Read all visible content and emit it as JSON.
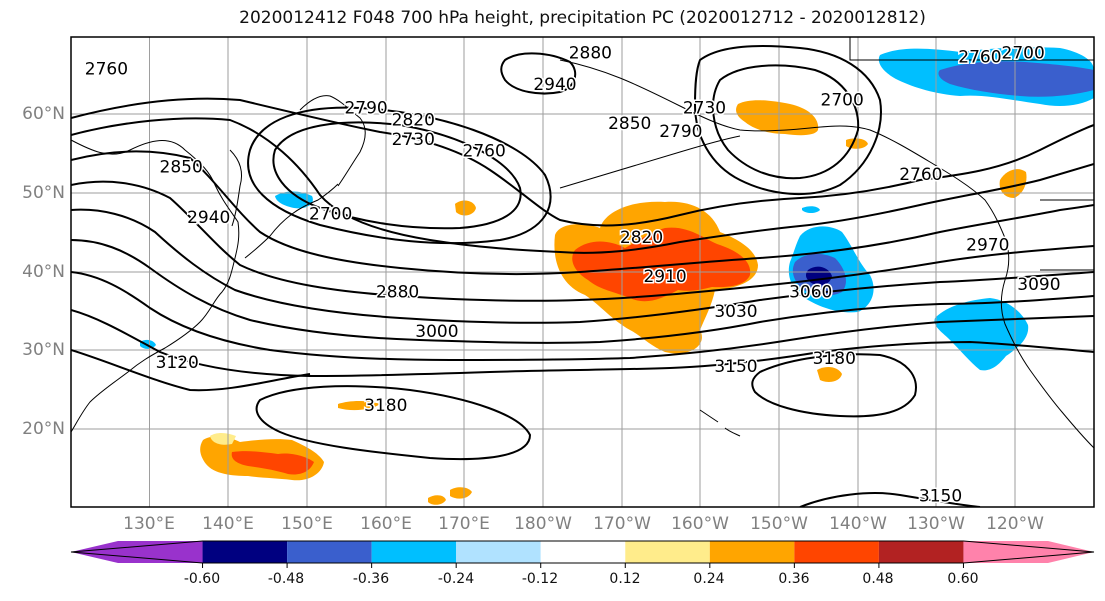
{
  "title": "2020012412 F048 700 hPa height, precipitation PC (2020012712 - 2020012812)",
  "map": {
    "lon_range": [
      120,
      250
    ],
    "lat_range": [
      10,
      70
    ],
    "lat_ticks": [
      {
        "lat": 60,
        "label": "60°N"
      },
      {
        "lat": 50,
        "label": "50°N"
      },
      {
        "lat": 40,
        "label": "40°N"
      },
      {
        "lat": 30,
        "label": "30°N"
      },
      {
        "lat": 20,
        "label": "20°N"
      }
    ],
    "lon_ticks": [
      {
        "lon": 130,
        "label": "130°E"
      },
      {
        "lon": 140,
        "label": "140°E"
      },
      {
        "lon": 150,
        "label": "150°E"
      },
      {
        "lon": 160,
        "label": "160°E"
      },
      {
        "lon": 170,
        "label": "170°E"
      },
      {
        "lon": 180,
        "label": "180°W"
      },
      {
        "lon": 190,
        "label": "170°W"
      },
      {
        "lon": 200,
        "label": "160°W"
      },
      {
        "lon": 210,
        "label": "150°W"
      },
      {
        "lon": 220,
        "label": "140°W"
      },
      {
        "lon": 230,
        "label": "130°W"
      },
      {
        "lon": 240,
        "label": "120°W"
      }
    ],
    "grid": true,
    "contour_labels": [
      {
        "text": "2760",
        "lon": 124.5,
        "lat": 66
      },
      {
        "text": "2790",
        "lon": 157.5,
        "lat": 61
      },
      {
        "text": "2820",
        "lon": 163.5,
        "lat": 59.5
      },
      {
        "text": "2730",
        "lon": 163.5,
        "lat": 57
      },
      {
        "text": "2760",
        "lon": 172.5,
        "lat": 55.5
      },
      {
        "text": "2850",
        "lon": 134,
        "lat": 53.5
      },
      {
        "text": "2940",
        "lon": 137.5,
        "lat": 47
      },
      {
        "text": "2700",
        "lon": 153,
        "lat": 47.5
      },
      {
        "text": "2940",
        "lon": 181.5,
        "lat": 64
      },
      {
        "text": "2880",
        "lon": 186,
        "lat": 68
      },
      {
        "text": "2850",
        "lon": 191,
        "lat": 59
      },
      {
        "text": "2790",
        "lon": 197.5,
        "lat": 58
      },
      {
        "text": "2730",
        "lon": 200.5,
        "lat": 61
      },
      {
        "text": "2700",
        "lon": 218,
        "lat": 62
      },
      {
        "text": "2760",
        "lon": 235.5,
        "lat": 67.5
      },
      {
        "text": "2700",
        "lon": 241,
        "lat": 68
      },
      {
        "text": "2760",
        "lon": 228,
        "lat": 52.5
      },
      {
        "text": "2970",
        "lon": 236.5,
        "lat": 43.5
      },
      {
        "text": "2820",
        "lon": 192.5,
        "lat": 44.5
      },
      {
        "text": "2910",
        "lon": 195.5,
        "lat": 39.5
      },
      {
        "text": "2880",
        "lon": 161.5,
        "lat": 37.5
      },
      {
        "text": "3000",
        "lon": 166.5,
        "lat": 32.5
      },
      {
        "text": "3030",
        "lon": 204.5,
        "lat": 35
      },
      {
        "text": "3060",
        "lon": 214,
        "lat": 37.5
      },
      {
        "text": "3090",
        "lon": 243,
        "lat": 38.5
      },
      {
        "text": "3150",
        "lon": 204.5,
        "lat": 28
      },
      {
        "text": "3180",
        "lon": 217,
        "lat": 29
      },
      {
        "text": "3120",
        "lon": 133.5,
        "lat": 28.5
      },
      {
        "text": "3180",
        "lon": 160,
        "lat": 23
      },
      {
        "text": "3150",
        "lon": 230.5,
        "lat": 11.5
      }
    ]
  },
  "colorbar": {
    "colors": [
      "#9932cc",
      "#000080",
      "#3a5fcd",
      "#00bfff",
      "#b0e2ff",
      "#ffffff",
      "#ffec8b",
      "#ffa500",
      "#ff4500",
      "#b22222",
      "#ff82ab"
    ],
    "tick_labels": [
      "-0.60",
      "-0.48",
      "-0.36",
      "-0.24",
      "-0.12",
      "0.12",
      "0.24",
      "0.36",
      "0.48",
      "0.60"
    ]
  }
}
